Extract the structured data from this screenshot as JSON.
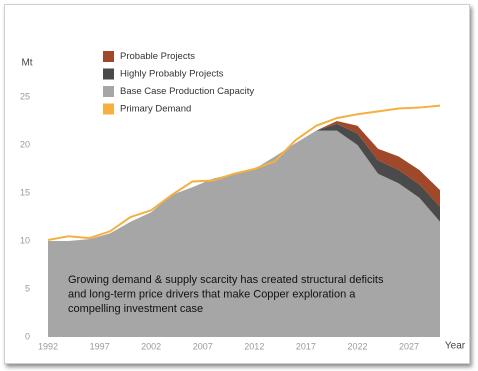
{
  "chart_data": {
    "type": "area",
    "y_axis_label": "Mt",
    "x_axis_label": "Year",
    "x": [
      1992,
      1994,
      1996,
      1998,
      2000,
      2002,
      2004,
      2006,
      2008,
      2010,
      2012,
      2014,
      2016,
      2018,
      2020,
      2022,
      2024,
      2026,
      2028,
      2030
    ],
    "series": [
      {
        "name": "Base Case Production Capacity",
        "color": "#a6a6a6",
        "stacked": true,
        "values": [
          10,
          10,
          10.2,
          10.8,
          12,
          13,
          14.8,
          15.6,
          16.5,
          17,
          17.5,
          18.8,
          20.2,
          21.5,
          21.5,
          20,
          17,
          16,
          14.5,
          12
        ]
      },
      {
        "name": "Highly Probably Projects",
        "color": "#4a4a4a",
        "stacked": true,
        "values": [
          0,
          0,
          0,
          0,
          0,
          0,
          0,
          0,
          0,
          0,
          0,
          0,
          0,
          0,
          0.7,
          1.2,
          1.4,
          1.4,
          1.4,
          1.6
        ]
      },
      {
        "name": "Probable Projects",
        "color": "#a0492a",
        "stacked": true,
        "values": [
          0,
          0,
          0,
          0,
          0,
          0,
          0,
          0,
          0,
          0,
          0,
          0,
          0,
          0,
          0.3,
          0.8,
          1.2,
          1.4,
          1.5,
          1.7
        ]
      },
      {
        "name": "Primary Demand",
        "color": "#f5b041",
        "stacked": false,
        "values": [
          10.1,
          10.5,
          10.3,
          11,
          12.5,
          13.2,
          14.8,
          16.2,
          16.3,
          17,
          17.5,
          18.3,
          20.5,
          22,
          22.8,
          23.2,
          23.5,
          23.8,
          23.9,
          24.1
        ]
      }
    ],
    "legend_order": [
      2,
      1,
      0,
      3
    ],
    "legend_position": "top-left",
    "xlim": [
      1992,
      2030
    ],
    "ylim": [
      0,
      25
    ],
    "xticks": [
      1992,
      1997,
      2002,
      2007,
      2012,
      2017,
      2022,
      2027
    ],
    "yticks": [
      0,
      5,
      10,
      15,
      20,
      25
    ],
    "grid": false,
    "annotation": [
      "Growing demand & supply scarcity has created structural deficits",
      "and long-term price drivers that make Copper exploration a",
      "compelling investment case"
    ]
  }
}
